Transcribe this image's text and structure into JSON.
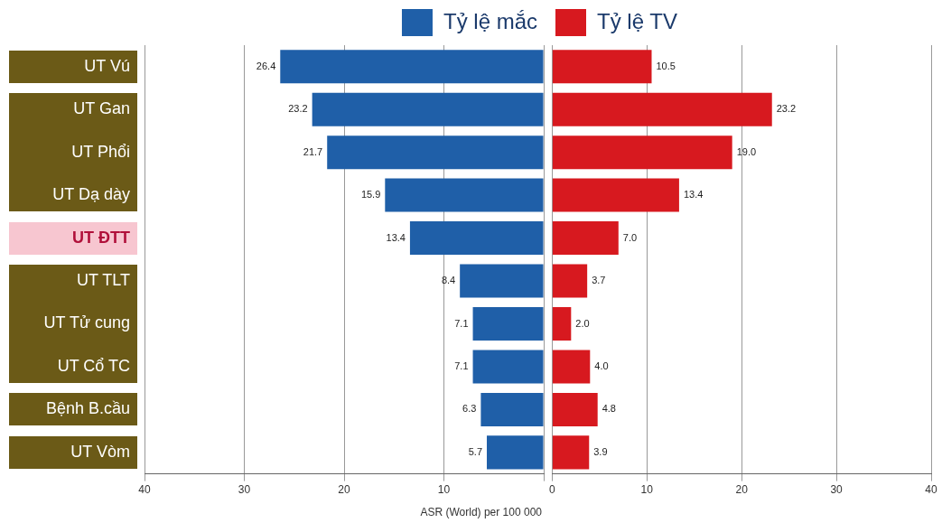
{
  "chart_data": [
    {
      "type": "bar",
      "orientation": "horizontal",
      "categories": [
        "UT Vú",
        "UT Gan",
        "UT Phổi",
        "UT Dạ dày",
        "UT ĐTT",
        "UT TLT",
        "UT Tử cung",
        "UT Cổ TC",
        "Bệnh B.cầu",
        "UT Vòm"
      ],
      "series": [
        {
          "name": "Tỷ lệ mắc",
          "color": "#1f5fa8",
          "values": [
            26.4,
            23.2,
            21.7,
            15.9,
            13.4,
            8.4,
            7.1,
            7.1,
            6.3,
            5.7
          ]
        }
      ],
      "data_labels": true,
      "xlim": [
        40,
        0
      ],
      "xticks": [
        40,
        30,
        20,
        10,
        {
          "value": 0,
          "label": null
        }
      ],
      "xlabel": "ASR (World) per 100 000",
      "grid": "x",
      "legend": "top right"
    },
    {
      "type": "bar",
      "orientation": "horizontal",
      "categories": [
        null,
        null,
        null,
        null,
        null,
        null,
        null,
        null,
        null,
        null
      ],
      "series": [
        {
          "name": "Tỷ lệ TV",
          "color": "#d7191f",
          "values": [
            10.5,
            23.2,
            19.0,
            13.4,
            7.0,
            3.7,
            2.0,
            4.0,
            4.8,
            3.9
          ],
          "value_labels": [
            "10.5",
            "23.2",
            "19.0",
            "13.4",
            "7.0",
            "3.7",
            "2.0",
            "4.0",
            "4.8",
            "3.9"
          ]
        }
      ],
      "xlim": [
        0,
        40
      ],
      "xticks": [
        0,
        10,
        20,
        30,
        40
      ],
      "tick_labels": "x",
      "grid": "x",
      "legend": "top left"
    }
  ]
}
